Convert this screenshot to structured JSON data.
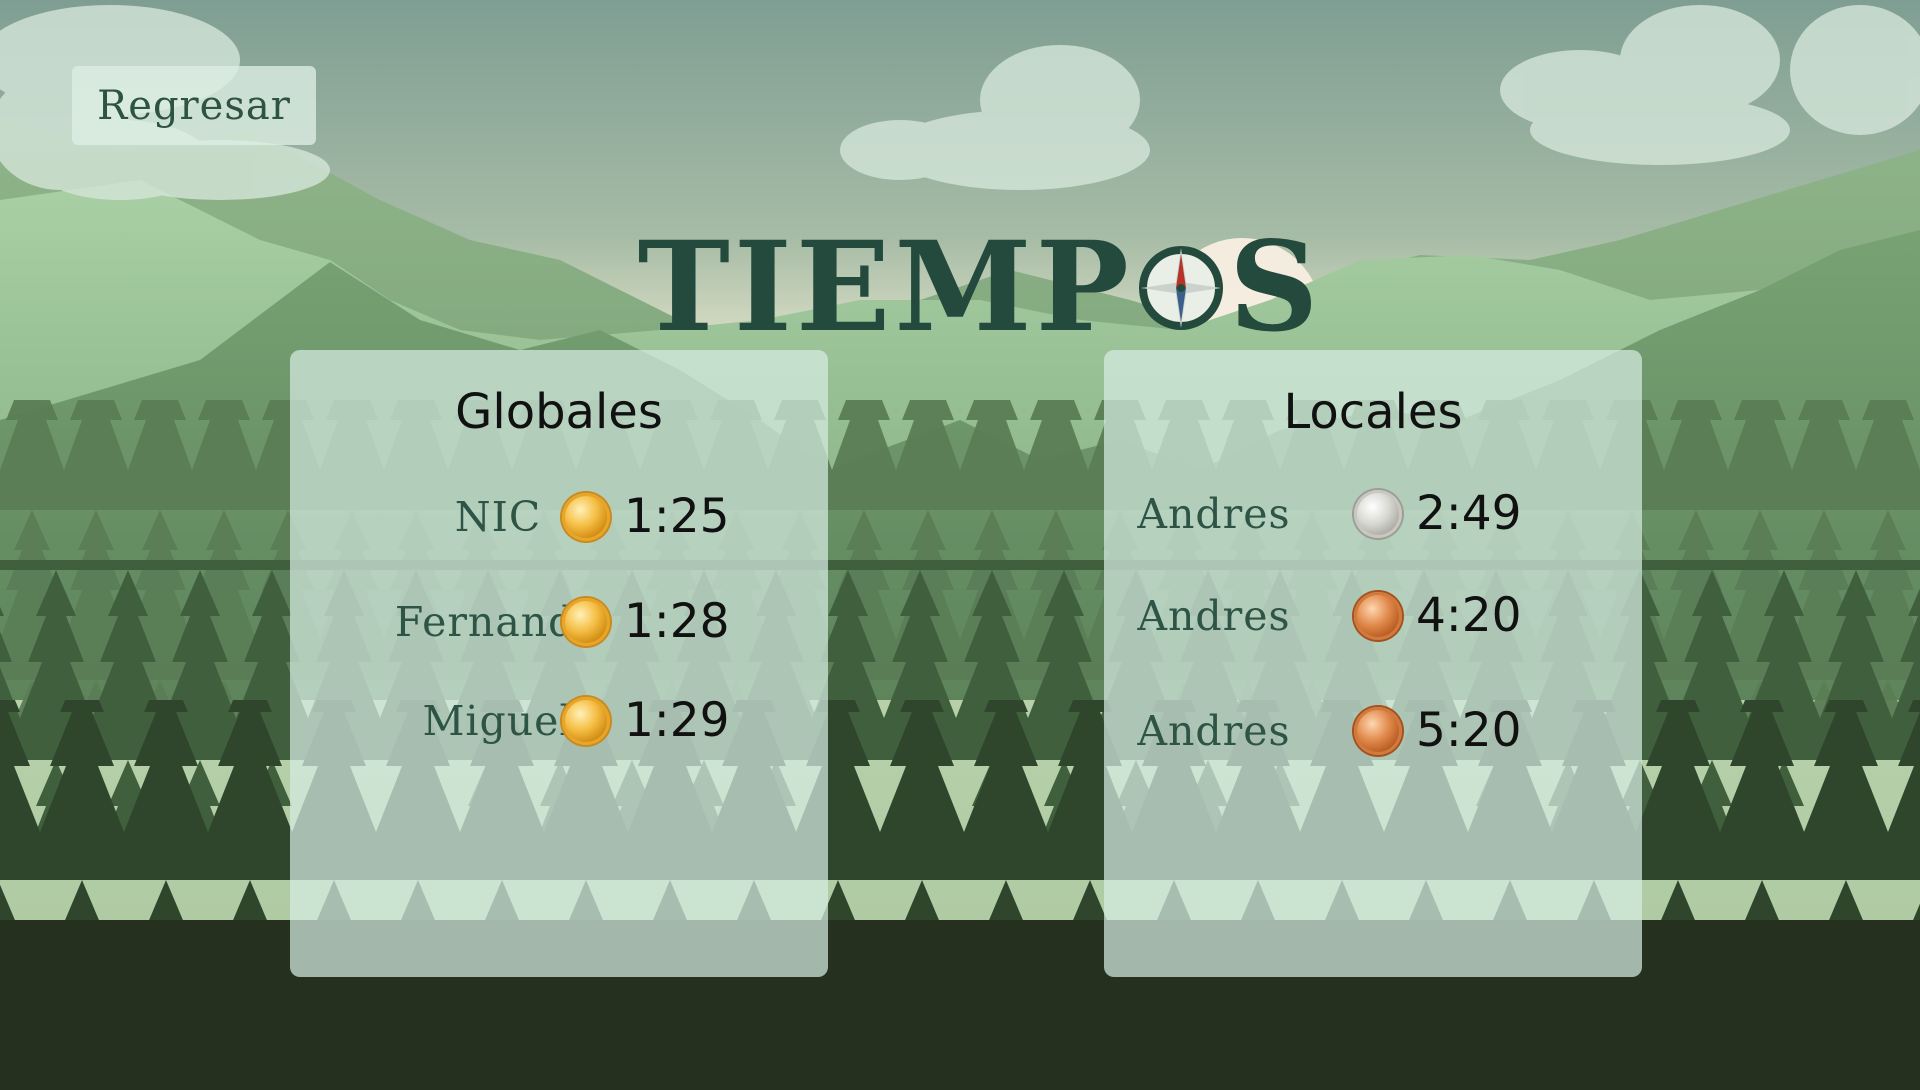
{
  "screen": {
    "back_label": "Regresar",
    "title_before": "TIEMP",
    "title_after": "S"
  },
  "colors": {
    "title": "#234a3c",
    "name_text": "#2e5446",
    "panel_bg": "#d6ece2",
    "gold": "#f5be45",
    "silver": "#d8d8d2",
    "bronze": "#e0884a"
  },
  "globales": {
    "title": "Globales",
    "rows": [
      {
        "name": "NIC",
        "medal": "gold",
        "time": "1:25"
      },
      {
        "name": "Fernando",
        "medal": "gold",
        "time": "1:28"
      },
      {
        "name": "Miguel",
        "medal": "gold",
        "time": "1:29"
      }
    ]
  },
  "locales": {
    "title": "Locales",
    "rows": [
      {
        "name": "Andres",
        "medal": "silver",
        "time": "2:49"
      },
      {
        "name": "Andres",
        "medal": "bronze",
        "time": "4:20"
      },
      {
        "name": "Andres",
        "medal": "bronze",
        "time": "5:20"
      }
    ]
  }
}
